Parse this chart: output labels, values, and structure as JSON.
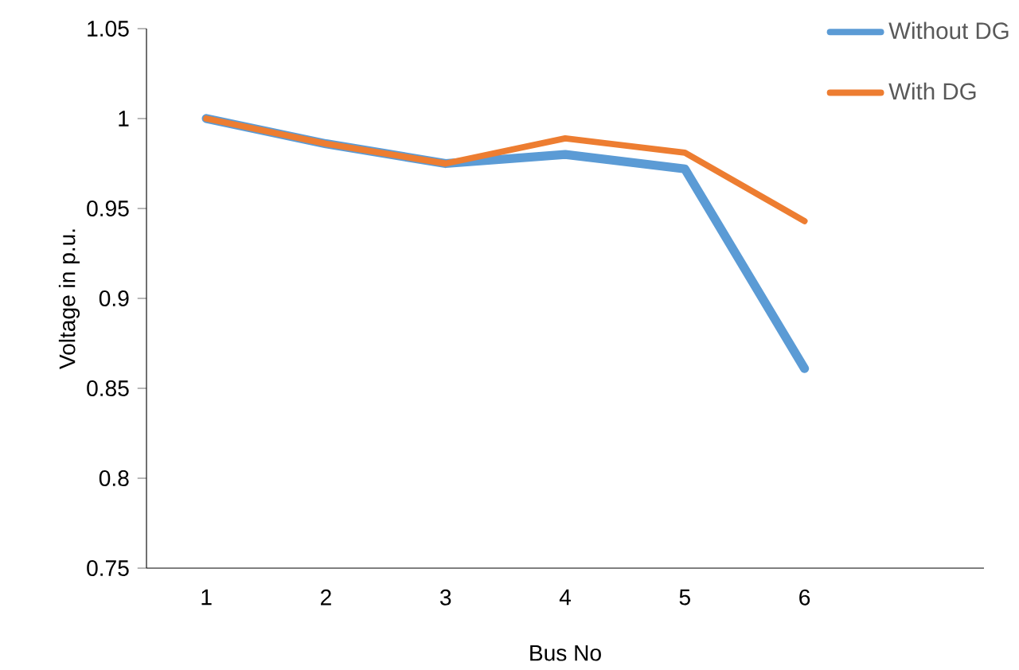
{
  "chart_data": {
    "type": "line",
    "xlabel": "Bus No",
    "ylabel": "Voltage in p.u.",
    "categories": [
      "1",
      "2",
      "3",
      "4",
      "5",
      "6",
      null
    ],
    "series": [
      {
        "name": "Without DG",
        "color": "#5b9bd5",
        "values": [
          1.0,
          0.986,
          0.975,
          0.98,
          0.972,
          0.861,
          null
        ]
      },
      {
        "name": "With DG",
        "color": "#ed7d31",
        "values": [
          1.0,
          0.986,
          0.975,
          0.989,
          0.981,
          0.943,
          null
        ]
      }
    ],
    "ylim": [
      0.75,
      1.05
    ],
    "yticks": [
      0.75,
      0.8,
      0.85,
      0.9,
      0.95,
      1,
      1.05
    ],
    "grid": false,
    "legend": "top right",
    "marker": "none",
    "line_style": "solid"
  }
}
